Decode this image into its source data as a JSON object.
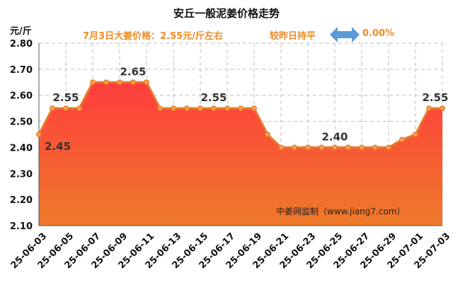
{
  "header": {
    "title": "安丘一般泥姜价格走势",
    "price_summary": "7月3日大姜价格：2.55元/斤左右",
    "compare_text": "较昨日持平",
    "change_pct": "0.00%",
    "arrow_icon": "left-right-arrow-icon",
    "accent_color": "#f08a23",
    "arrow_color": "#5b9bd5"
  },
  "chart_data": {
    "type": "area",
    "title": "安丘一般泥姜价格走势",
    "ylabel": "元/斤",
    "xlabel": "",
    "ylim": [
      2.1,
      2.8
    ],
    "yticks": [
      "2.10",
      "2.20",
      "2.30",
      "2.40",
      "2.50",
      "2.60",
      "2.70",
      "2.80"
    ],
    "grid": true,
    "x": [
      "25-06-03",
      "25-06-04",
      "25-06-05",
      "25-06-06",
      "25-06-07",
      "25-06-08",
      "25-06-09",
      "25-06-10",
      "25-06-11",
      "25-06-12",
      "25-06-13",
      "25-06-14",
      "25-06-15",
      "25-06-16",
      "25-06-17",
      "25-06-18",
      "25-06-19",
      "25-06-20",
      "25-06-21",
      "25-06-22",
      "25-06-23",
      "25-06-24",
      "25-06-25",
      "25-06-26",
      "25-06-27",
      "25-06-28",
      "25-06-29",
      "25-06-30",
      "25-07-01",
      "25-07-02",
      "25-07-03"
    ],
    "xtick_labels": [
      "25-06-03",
      "25-06-05",
      "25-06-07",
      "25-06-09",
      "25-06-11",
      "25-06-13",
      "25-06-15",
      "25-06-17",
      "25-06-19",
      "25-06-21",
      "25-06-23",
      "25-06-25",
      "25-06-27",
      "25-06-29",
      "25-07-01",
      "25-07-03"
    ],
    "values": [
      2.45,
      2.55,
      2.55,
      2.55,
      2.65,
      2.65,
      2.65,
      2.65,
      2.65,
      2.55,
      2.55,
      2.55,
      2.55,
      2.55,
      2.55,
      2.55,
      2.55,
      2.45,
      2.4,
      2.4,
      2.4,
      2.4,
      2.4,
      2.4,
      2.4,
      2.4,
      2.4,
      2.43,
      2.45,
      2.55,
      2.55
    ],
    "data_labels": [
      {
        "index": 0,
        "text": "2.45"
      },
      {
        "index": 2,
        "text": "2.55"
      },
      {
        "index": 7,
        "text": "2.65"
      },
      {
        "index": 13,
        "text": "2.55"
      },
      {
        "index": 22,
        "text": "2.40"
      },
      {
        "index": 30,
        "text": "2.55"
      }
    ],
    "watermark": "中姜网监制（www.jiang7.com）",
    "colors": {
      "line": "#e87a2b",
      "marker_fill": "#f6a55a",
      "fill_top": "#ff3d3d",
      "fill_bottom": "#ee7a2a",
      "grid": "#bfbfbf"
    }
  }
}
